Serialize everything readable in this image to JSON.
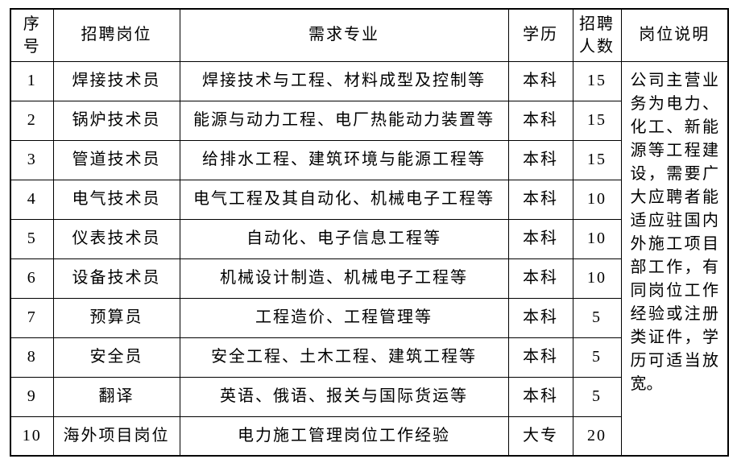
{
  "table": {
    "headers": {
      "no": "序号",
      "position": "招聘岗位",
      "major": "需求专业",
      "education": "学历",
      "count": "招聘人数",
      "description": "岗位说明"
    },
    "rows": [
      {
        "no": "1",
        "position": "焊接技术员",
        "major": "焊接技术与工程、材料成型及控制等",
        "education": "本科",
        "count": "15"
      },
      {
        "no": "2",
        "position": "锅炉技术员",
        "major": "能源与动力工程、电厂热能动力装置等",
        "education": "本科",
        "count": "15"
      },
      {
        "no": "3",
        "position": "管道技术员",
        "major": "给排水工程、建筑环境与能源工程等",
        "education": "本科",
        "count": "15"
      },
      {
        "no": "4",
        "position": "电气技术员",
        "major": "电气工程及其自动化、机械电子工程等",
        "education": "本科",
        "count": "10"
      },
      {
        "no": "5",
        "position": "仪表技术员",
        "major": "自动化、电子信息工程等",
        "education": "本科",
        "count": "10"
      },
      {
        "no": "6",
        "position": "设备技术员",
        "major": "机械设计制造、机械电子工程等",
        "education": "本科",
        "count": "10"
      },
      {
        "no": "7",
        "position": "预算员",
        "major": "工程造价、工程管理等",
        "education": "本科",
        "count": "5"
      },
      {
        "no": "8",
        "position": "安全员",
        "major": "安全工程、土木工程、建筑工程等",
        "education": "本科",
        "count": "5"
      },
      {
        "no": "9",
        "position": "翻译",
        "major": "英语、俄语、报关与国际货运等",
        "education": "本科",
        "count": "5"
      },
      {
        "no": "10",
        "position": "海外项目岗位",
        "major": "电力施工管理岗位工作经验",
        "education": "大专",
        "count": "20"
      }
    ],
    "description": "公司主营业务为电力、化工、新能源等工程建设，需要广大应聘者能适应驻国内外施工项目部工作，有同岗位工作经验或注册类证件，学历可适当放宽。"
  }
}
